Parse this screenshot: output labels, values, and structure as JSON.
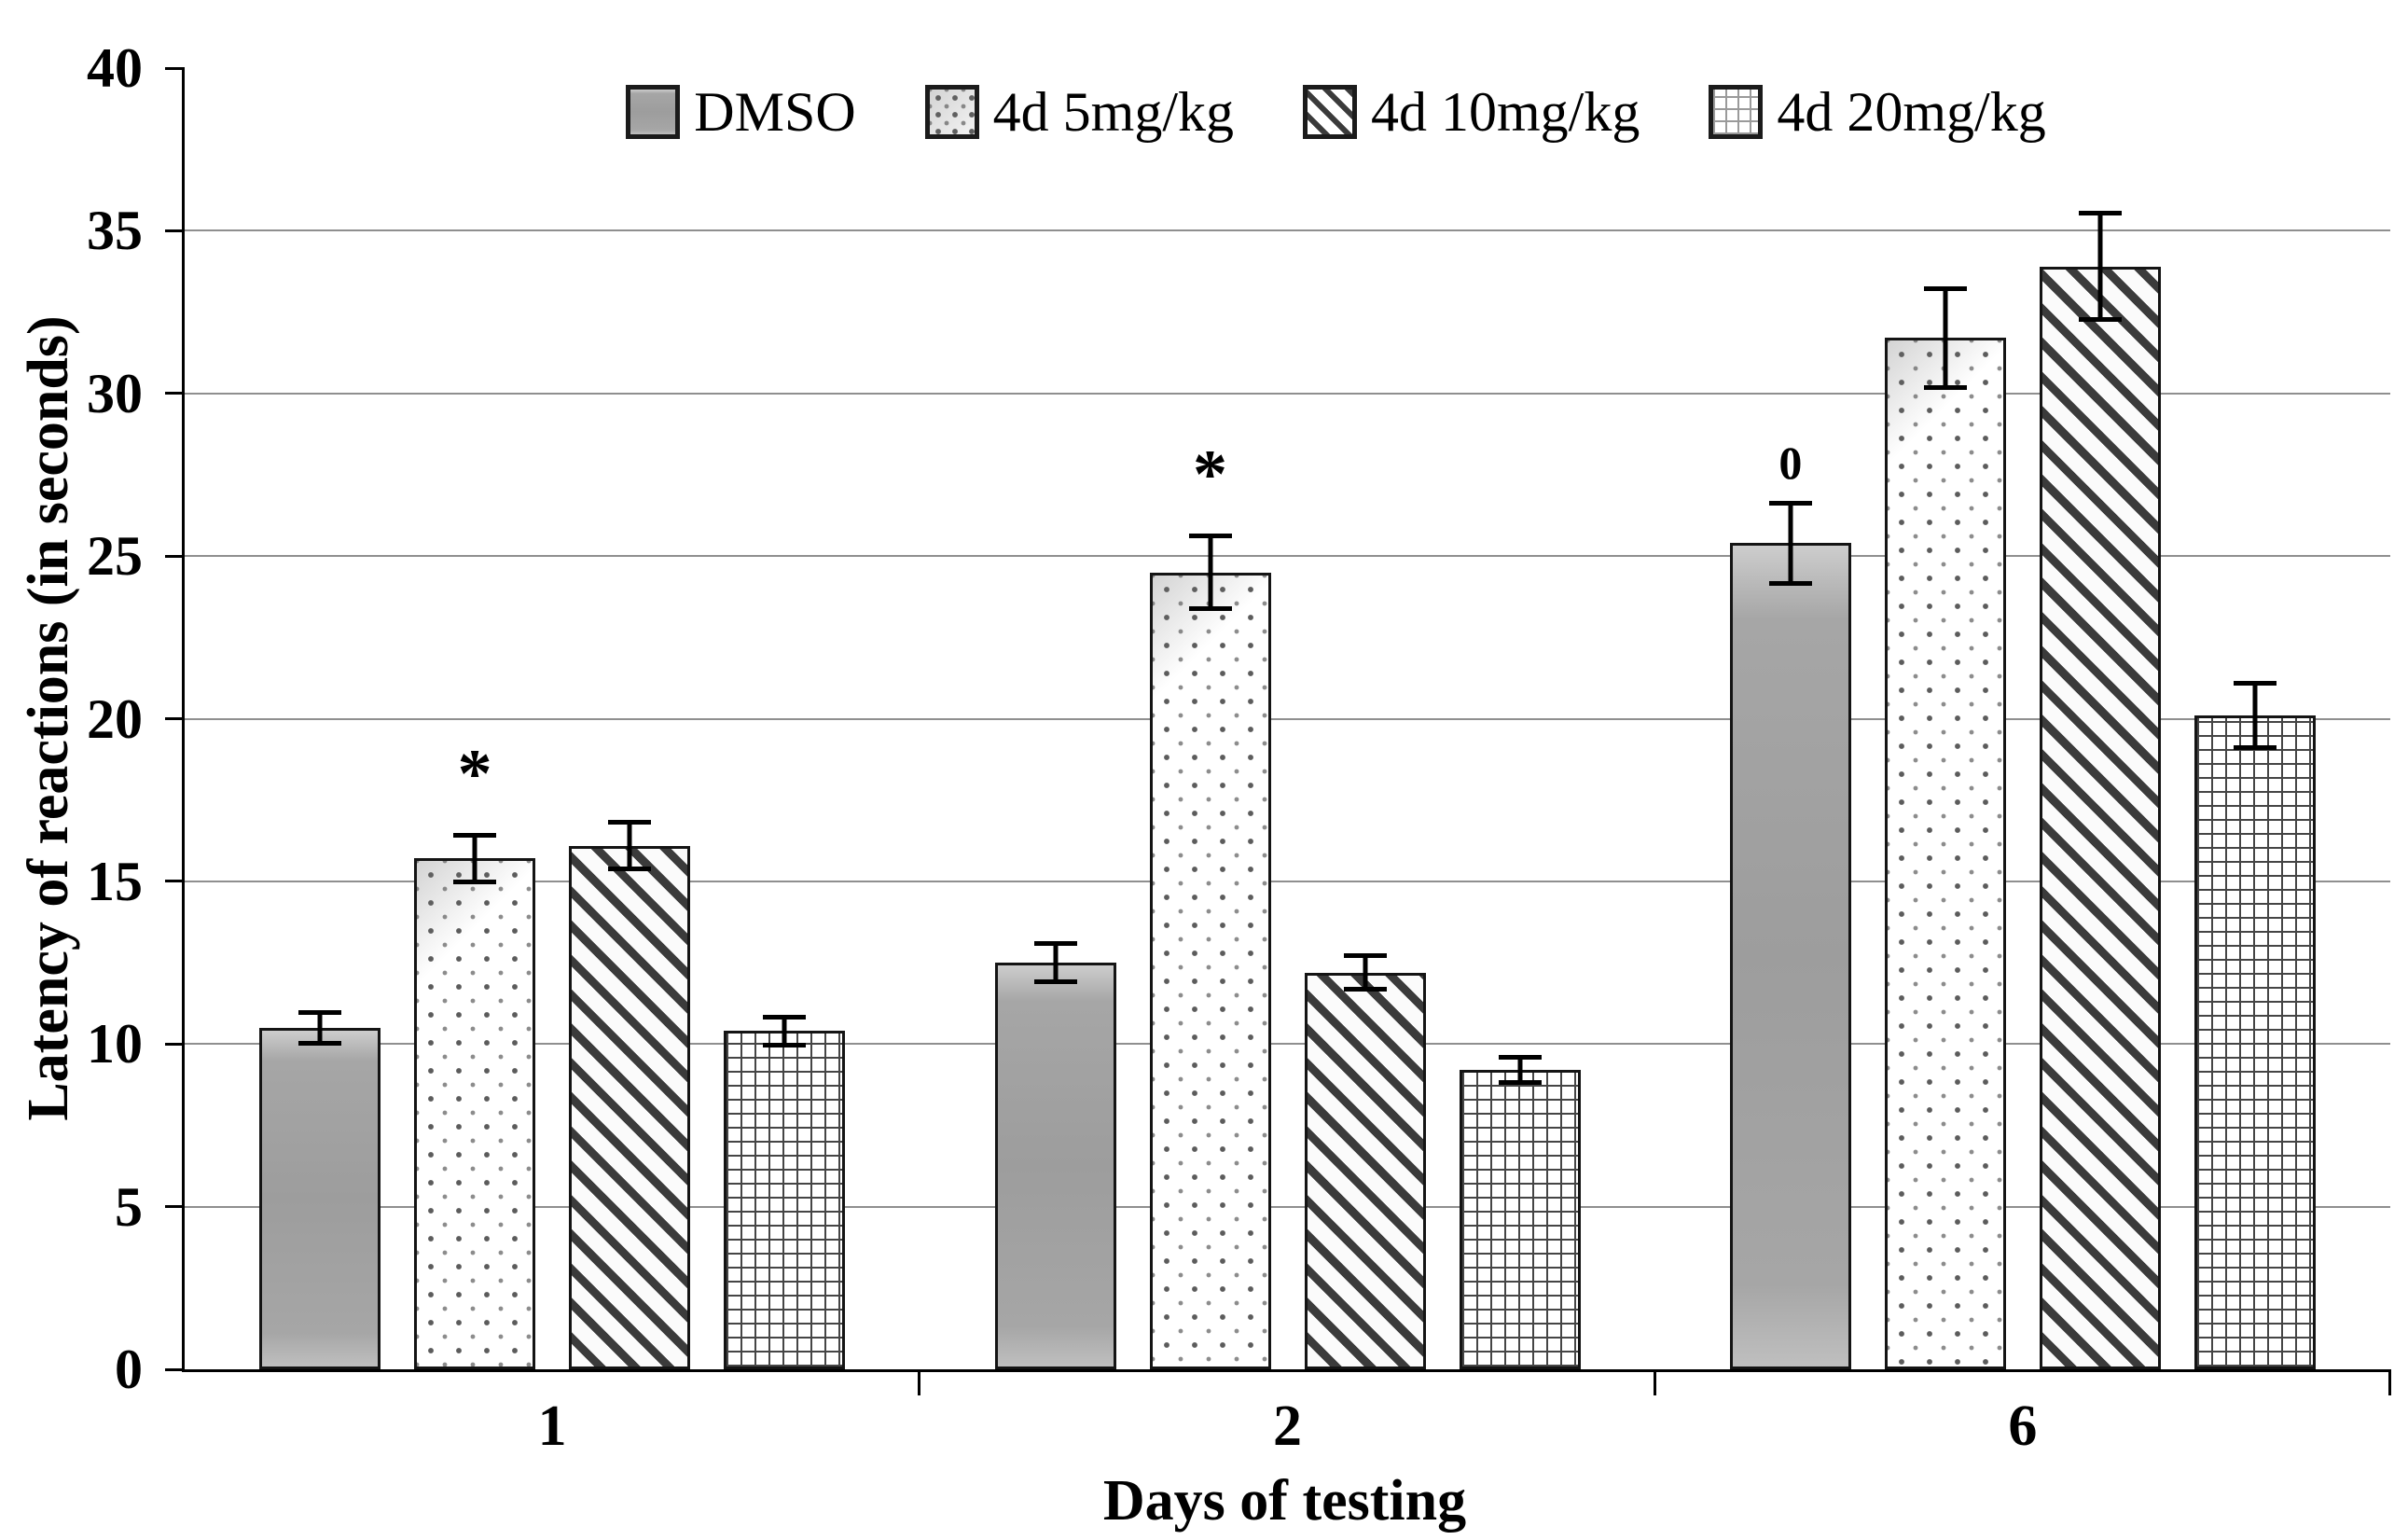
{
  "chart_data": {
    "type": "bar",
    "title": "",
    "xlabel": "Days of testing",
    "ylabel": "Latency of reactions (in seconds)",
    "ylim": [
      0,
      40
    ],
    "ytick_step": 5,
    "yticks": [
      0,
      5,
      10,
      15,
      20,
      25,
      30,
      35,
      40
    ],
    "grid": true,
    "legend_position": "top-center",
    "categories": [
      "1",
      "2",
      "6"
    ],
    "series": [
      {
        "name": "DMSO",
        "pattern": "solid-gray",
        "values": [
          10.5,
          12.5,
          25.4
        ],
        "error": [
          0.55,
          0.65,
          1.3
        ]
      },
      {
        "name": "4d 5mg/kg",
        "pattern": "dots",
        "values": [
          15.7,
          24.5,
          31.7
        ],
        "error": [
          0.8,
          1.2,
          1.6
        ]
      },
      {
        "name": "4d 10mg/kg",
        "pattern": "diagonal-stripes",
        "values": [
          16.1,
          12.2,
          33.9
        ],
        "error": [
          0.8,
          0.6,
          1.7
        ]
      },
      {
        "name": "4d 20mg/kg",
        "pattern": "grid-crosshatch",
        "values": [
          10.4,
          9.2,
          20.1
        ],
        "error": [
          0.5,
          0.45,
          1.05
        ]
      }
    ],
    "annotations": [
      {
        "category": "1",
        "series": "4d 5mg/kg",
        "text": "*"
      },
      {
        "category": "2",
        "series": "4d 5mg/kg",
        "text": "*"
      },
      {
        "category": "6",
        "series": "DMSO",
        "text": "0"
      }
    ]
  },
  "colors": {
    "background": "#ffffff",
    "axis": "#000000",
    "gridline": "#8f8f8f",
    "bar_border": "#141414",
    "dmso_gray": "#a6a6a6",
    "pattern_ink": "#3b3b3b",
    "error_bar": "#000000",
    "text": "#000000"
  }
}
